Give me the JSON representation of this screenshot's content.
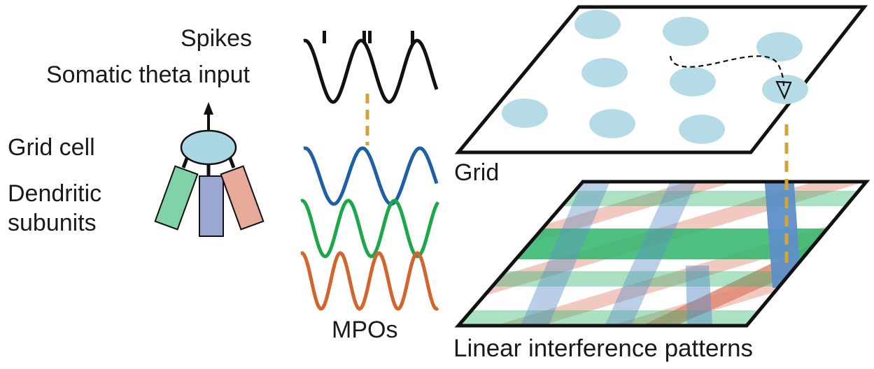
{
  "labels": {
    "spikes": "Spikes",
    "somatic_theta_input": "Somatic theta input",
    "grid_cell": "Grid cell",
    "dendritic_line1": "Dendritic",
    "dendritic_line2": "subunits",
    "mpos": "MPOs",
    "grid": "Grid",
    "linear_interference_patterns": "Linear interference patterns"
  },
  "colors": {
    "cell_body": "#a9d7e3",
    "dendrite_green": "#7fd3a6",
    "dendrite_blue": "#9aa7d0",
    "dendrite_red": "#e6a99a",
    "mpo_blue": "#1f5fa8",
    "mpo_green": "#1aa84b",
    "mpo_orange": "#d2642c",
    "dashed_link": "#d4a437",
    "grid_field": "#b5dce6",
    "band_blue": "#5d8fc7",
    "band_green": "#2fb66b",
    "band_red": "#e08873"
  }
}
